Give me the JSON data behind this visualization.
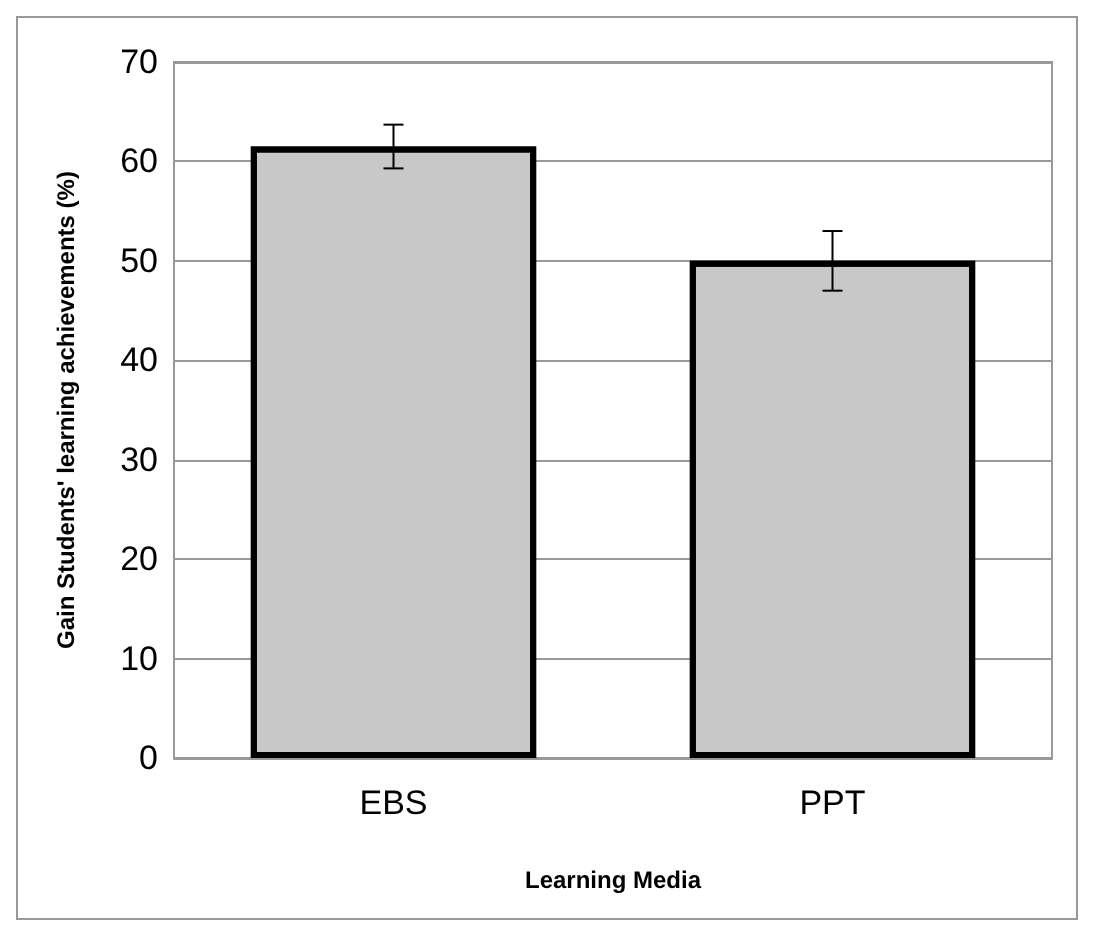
{
  "chart_data": {
    "type": "bar",
    "xlabel": "Learning Media",
    "ylabel": "Gain Students' learning achievements (%)",
    "categories": [
      "EBS",
      "PPT"
    ],
    "values": [
      61.5,
      50
    ],
    "errors": [
      2.2,
      3
    ],
    "color": "#c8c8c8",
    "ylim": [
      0,
      70
    ],
    "yticks": [
      0,
      10,
      20,
      30,
      40,
      50,
      60,
      70
    ],
    "grid": "y"
  }
}
